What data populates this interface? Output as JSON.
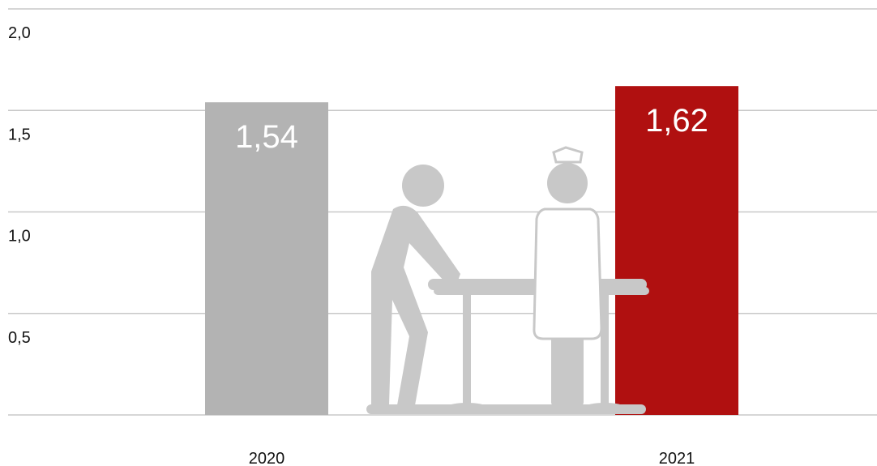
{
  "chart_data": {
    "type": "bar",
    "categories": [
      "2020",
      "2021"
    ],
    "values": [
      1.54,
      1.62
    ],
    "value_labels": [
      "1,54",
      "1,62"
    ],
    "colors": [
      "#b3b3b3",
      "#b01010"
    ],
    "ylim": [
      0,
      2
    ],
    "yticks": [
      {
        "value": 0.5,
        "label": "0,5"
      },
      {
        "value": 1,
        "label": "1,0"
      },
      {
        "value": 1.5,
        "label": "1,5"
      },
      {
        "value": 2,
        "label": "2,0"
      }
    ],
    "grid": true
  }
}
